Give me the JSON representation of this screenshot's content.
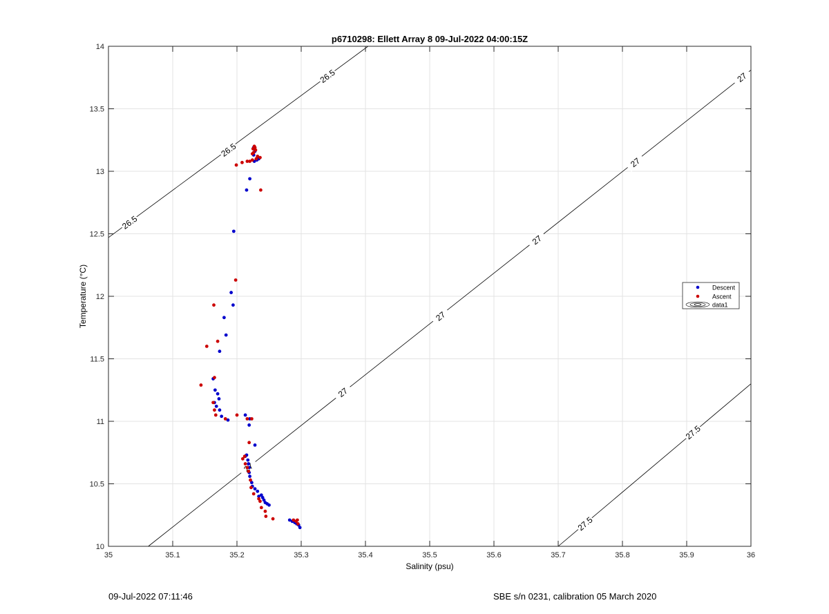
{
  "chart_data": {
    "type": "scatter",
    "title": "p6710298: Ellett Array 8 09-Jul-2022 04:00:15Z",
    "xlabel": "Salinity (psu)",
    "ylabel": "Temperature (°C)",
    "xlim": [
      35,
      36
    ],
    "ylim": [
      10,
      14
    ],
    "xticks": [
      35,
      35.1,
      35.2,
      35.3,
      35.4,
      35.5,
      35.6,
      35.7,
      35.8,
      35.9,
      36
    ],
    "xtick_labels": [
      "35",
      "35.1",
      "35.2",
      "35.3",
      "35.4",
      "35.5",
      "35.6",
      "35.7",
      "35.8",
      "35.9",
      "36"
    ],
    "yticks": [
      10,
      10.5,
      11,
      11.5,
      12,
      12.5,
      13,
      13.5,
      14
    ],
    "ytick_labels": [
      "10",
      "10.5",
      "11",
      "11.5",
      "12",
      "12.5",
      "13",
      "13.5",
      "14"
    ],
    "grid": true,
    "legend_position": "right",
    "legend": [
      "Descent",
      "Ascent",
      "data1"
    ],
    "contours": [
      {
        "label": "26.5",
        "points": [
          [
            35.0,
            12.47
          ],
          [
            35.404,
            14.0
          ]
        ],
        "label_positions": [
          [
            35.033,
            12.59
          ],
          [
            35.187,
            13.17
          ],
          [
            35.341,
            13.76
          ]
        ]
      },
      {
        "label": "27",
        "points": [
          [
            35.062,
            10.0
          ],
          [
            36.0,
            13.81
          ]
        ],
        "label_positions": [
          [
            35.218,
            10.63
          ],
          [
            35.365,
            11.23
          ],
          [
            35.517,
            11.84
          ],
          [
            35.667,
            12.45
          ],
          [
            35.82,
            13.07
          ],
          [
            35.986,
            13.75
          ]
        ]
      },
      {
        "label": "27.5",
        "points": [
          [
            35.7,
            10.0
          ],
          [
            36.0,
            11.3
          ]
        ],
        "label_positions": [
          [
            35.742,
            10.18
          ],
          [
            35.91,
            10.91
          ]
        ]
      }
    ],
    "series": [
      {
        "name": "Descent",
        "color": "#0000cc",
        "points": [
          [
            35.298,
            10.15
          ],
          [
            35.296,
            10.17
          ],
          [
            35.293,
            10.18
          ],
          [
            35.29,
            10.19
          ],
          [
            35.286,
            10.2
          ],
          [
            35.282,
            10.21
          ],
          [
            35.25,
            10.33
          ],
          [
            35.247,
            10.34
          ],
          [
            35.244,
            10.35
          ],
          [
            35.242,
            10.37
          ],
          [
            35.24,
            10.39
          ],
          [
            35.238,
            10.41
          ],
          [
            35.234,
            10.4
          ],
          [
            35.232,
            10.44
          ],
          [
            35.228,
            10.46
          ],
          [
            35.224,
            10.48
          ],
          [
            35.223,
            10.51
          ],
          [
            35.22,
            10.56
          ],
          [
            35.219,
            10.59
          ],
          [
            35.219,
            10.63
          ],
          [
            35.218,
            10.66
          ],
          [
            35.217,
            10.69
          ],
          [
            35.215,
            10.73
          ],
          [
            35.213,
            10.72
          ],
          [
            35.228,
            10.81
          ],
          [
            35.219,
            10.97
          ],
          [
            35.22,
            11.02
          ],
          [
            35.213,
            11.05
          ],
          [
            35.186,
            11.01
          ],
          [
            35.176,
            11.04
          ],
          [
            35.173,
            11.09
          ],
          [
            35.168,
            11.12
          ],
          [
            35.165,
            11.15
          ],
          [
            35.172,
            11.18
          ],
          [
            35.17,
            11.22
          ],
          [
            35.166,
            11.25
          ],
          [
            35.163,
            11.34
          ],
          [
            35.173,
            11.56
          ],
          [
            35.183,
            11.69
          ],
          [
            35.18,
            11.83
          ],
          [
            35.194,
            11.93
          ],
          [
            35.191,
            12.03
          ],
          [
            35.195,
            12.52
          ],
          [
            35.215,
            12.85
          ],
          [
            35.22,
            12.94
          ],
          [
            35.227,
            13.08
          ],
          [
            35.231,
            13.09
          ],
          [
            35.234,
            13.1
          ],
          [
            35.226,
            13.13
          ],
          [
            35.228,
            13.16
          ],
          [
            35.226,
            13.19
          ]
        ]
      },
      {
        "name": "Ascent",
        "color": "#cc0000",
        "points": [
          [
            35.295,
            10.18
          ],
          [
            35.292,
            10.2
          ],
          [
            35.288,
            10.21
          ],
          [
            35.294,
            10.21
          ],
          [
            35.256,
            10.22
          ],
          [
            35.245,
            10.24
          ],
          [
            35.244,
            10.28
          ],
          [
            35.238,
            10.31
          ],
          [
            35.236,
            10.36
          ],
          [
            35.234,
            10.38
          ],
          [
            35.226,
            10.42
          ],
          [
            35.222,
            10.47
          ],
          [
            35.221,
            10.53
          ],
          [
            35.218,
            10.6
          ],
          [
            35.216,
            10.63
          ],
          [
            35.213,
            10.66
          ],
          [
            35.209,
            10.7
          ],
          [
            35.212,
            10.72
          ],
          [
            35.219,
            10.83
          ],
          [
            35.216,
            11.02
          ],
          [
            35.223,
            11.02
          ],
          [
            35.2,
            11.05
          ],
          [
            35.182,
            11.02
          ],
          [
            35.167,
            11.05
          ],
          [
            35.165,
            11.09
          ],
          [
            35.163,
            11.15
          ],
          [
            35.144,
            11.29
          ],
          [
            35.165,
            11.35
          ],
          [
            35.153,
            11.6
          ],
          [
            35.17,
            11.64
          ],
          [
            35.164,
            11.93
          ],
          [
            35.198,
            12.13
          ],
          [
            35.237,
            12.85
          ],
          [
            35.199,
            13.05
          ],
          [
            35.208,
            13.07
          ],
          [
            35.216,
            13.08
          ],
          [
            35.22,
            13.08
          ],
          [
            35.224,
            13.09
          ],
          [
            35.23,
            13.1
          ],
          [
            35.236,
            13.11
          ],
          [
            35.232,
            13.12
          ],
          [
            35.224,
            13.14
          ],
          [
            35.226,
            13.15
          ],
          [
            35.229,
            13.17
          ],
          [
            35.225,
            13.18
          ],
          [
            35.228,
            13.19
          ],
          [
            35.227,
            13.2
          ]
        ]
      }
    ]
  },
  "footer": {
    "left": "09-Jul-2022 07:11:46",
    "right": "SBE s/n 0231, calibration 05 March 2020"
  }
}
